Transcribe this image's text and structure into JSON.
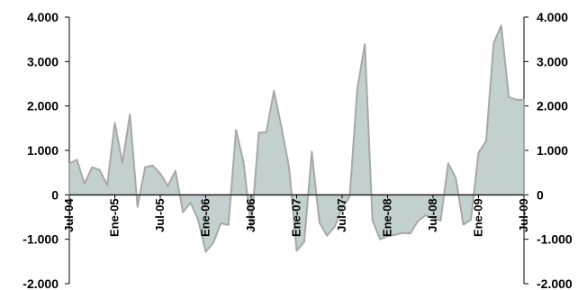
{
  "chart_data": {
    "type": "area",
    "title": "",
    "xlabel": "",
    "ylabel": "",
    "ylim": [
      -2000,
      4000
    ],
    "y_ticks": [
      -2000,
      -1000,
      0,
      1000,
      2000,
      3000,
      4000
    ],
    "y_tick_labels": [
      "-2.000",
      "-1.000",
      "0",
      "1.000",
      "2.000",
      "3.000",
      "4.000"
    ],
    "dual_y_axis": true,
    "grid": false,
    "x_tick_labels": [
      "Jul-04",
      "Ene-05",
      "Jul-05",
      "Ene-06",
      "Jul-06",
      "Ene-07",
      "Jul-07",
      "Ene-08",
      "Jul-08",
      "Ene-09",
      "Jul-09"
    ],
    "x": [
      "Jul-04",
      "Ago-04",
      "Sep-04",
      "Oct-04",
      "Nov-04",
      "Dic-04",
      "Ene-05",
      "Feb-05",
      "Mar-05",
      "Abr-05",
      "May-05",
      "Jun-05",
      "Jul-05",
      "Ago-05",
      "Sep-05",
      "Oct-05",
      "Nov-05",
      "Dic-05",
      "Ene-06",
      "Feb-06",
      "Mar-06",
      "Abr-06",
      "May-06",
      "Jun-06",
      "Jul-06",
      "Ago-06",
      "Sep-06",
      "Oct-06",
      "Nov-06",
      "Dic-06",
      "Ene-07",
      "Feb-07",
      "Mar-07",
      "Abr-07",
      "May-07",
      "Jun-07",
      "Jul-07",
      "Ago-07",
      "Sep-07",
      "Oct-07",
      "Nov-07",
      "Dic-07",
      "Ene-08",
      "Feb-08",
      "Mar-08",
      "Abr-08",
      "May-08",
      "Jun-08",
      "Jul-08",
      "Ago-08",
      "Sep-08",
      "Oct-08",
      "Nov-08",
      "Dic-08",
      "Ene-09",
      "Feb-09",
      "Mar-09",
      "Abr-09",
      "May-09",
      "Jun-09",
      "Jul-09"
    ],
    "series": [
      {
        "values": [
          700,
          790,
          250,
          620,
          560,
          220,
          1620,
          720,
          1810,
          -270,
          620,
          660,
          480,
          200,
          540,
          -390,
          -180,
          -560,
          -1280,
          -1080,
          -640,
          -680,
          1460,
          730,
          -780,
          1400,
          1410,
          2340,
          1520,
          620,
          -1260,
          -1060,
          970,
          -620,
          -920,
          -720,
          -300,
          -40,
          2380,
          3390,
          -570,
          -1000,
          -930,
          -900,
          -860,
          -870,
          -590,
          -460,
          -520,
          -580,
          710,
          380,
          -670,
          -560,
          950,
          1210,
          3420,
          3810,
          2200,
          2140,
          2140
        ]
      }
    ],
    "colors": {
      "fill": "#c3d0d0",
      "stroke": "#a8a8a8",
      "axis": "#000000"
    }
  }
}
